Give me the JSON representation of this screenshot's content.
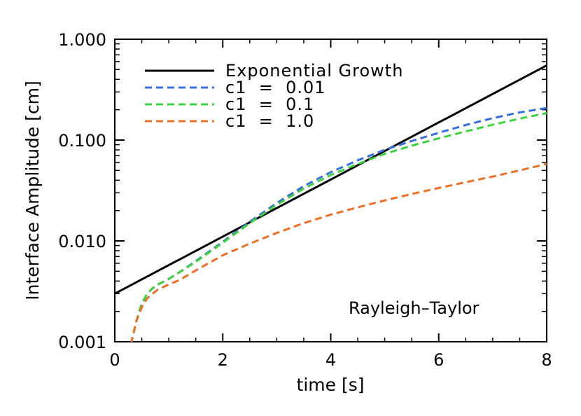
{
  "chart_data": {
    "type": "line",
    "title": "",
    "xlabel": "time [s]",
    "ylabel": "Interface Amplitude [cm]",
    "xlim": [
      0,
      8
    ],
    "ylim": [
      0.001,
      1.0
    ],
    "yscale": "log",
    "xticks": [
      0,
      2,
      4,
      6,
      8
    ],
    "xtick_labels": [
      "0",
      "2",
      "4",
      "6",
      "8"
    ],
    "yticks": [
      0.001,
      0.01,
      0.1,
      1.0
    ],
    "ytick_labels": [
      "0.001",
      "0.010",
      "0.100",
      "1.000"
    ],
    "annotation": "Rayleigh–Taylor",
    "legend_position": "top-left",
    "series": [
      {
        "name": "Exponential Growth",
        "color": "#000000",
        "dash": "solid",
        "x": [
          0,
          8
        ],
        "y": [
          0.003,
          0.55
        ]
      },
      {
        "name": "c1  =  0.01",
        "color": "#3a6fd8",
        "dash": "dashed",
        "x": [
          0.3,
          0.4,
          0.5,
          0.6,
          0.7,
          0.8,
          1.0,
          1.2,
          1.5,
          2.0,
          2.5,
          3.0,
          3.5,
          4.0,
          4.5,
          5.0,
          5.5,
          6.0,
          6.5,
          7.0,
          7.5,
          8.0
        ],
        "y": [
          0.00095,
          0.0016,
          0.0024,
          0.003,
          0.0034,
          0.0037,
          0.0042,
          0.0049,
          0.0063,
          0.0098,
          0.0155,
          0.0238,
          0.035,
          0.048,
          0.063,
          0.08,
          0.098,
          0.118,
          0.141,
          0.165,
          0.188,
          0.208
        ]
      },
      {
        "name": "c1  =  0.1",
        "color": "#40d040",
        "dash": "dashed",
        "x": [
          0.3,
          0.4,
          0.5,
          0.6,
          0.7,
          0.8,
          1.0,
          1.2,
          1.5,
          2.0,
          2.5,
          3.0,
          3.5,
          4.0,
          4.5,
          5.0,
          5.5,
          6.0,
          6.5,
          7.0,
          7.5,
          8.0
        ],
        "y": [
          0.00095,
          0.0016,
          0.0024,
          0.003,
          0.0034,
          0.0037,
          0.0042,
          0.0049,
          0.0062,
          0.0096,
          0.015,
          0.0228,
          0.033,
          0.045,
          0.058,
          0.073,
          0.088,
          0.104,
          0.122,
          0.142,
          0.163,
          0.185
        ]
      },
      {
        "name": "c1  =  1.0",
        "color": "#e8702a",
        "dash": "dashed",
        "x": [
          0.3,
          0.4,
          0.5,
          0.6,
          0.7,
          0.8,
          1.0,
          1.2,
          1.5,
          2.0,
          2.5,
          3.0,
          3.5,
          4.0,
          4.5,
          5.0,
          5.5,
          6.0,
          6.5,
          7.0,
          7.5,
          8.0
        ],
        "y": [
          0.00095,
          0.0016,
          0.0022,
          0.0027,
          0.003,
          0.0033,
          0.0037,
          0.0041,
          0.0051,
          0.0072,
          0.0094,
          0.012,
          0.015,
          0.0182,
          0.0215,
          0.0252,
          0.0292,
          0.0335,
          0.0382,
          0.0435,
          0.05,
          0.058
        ]
      }
    ]
  }
}
